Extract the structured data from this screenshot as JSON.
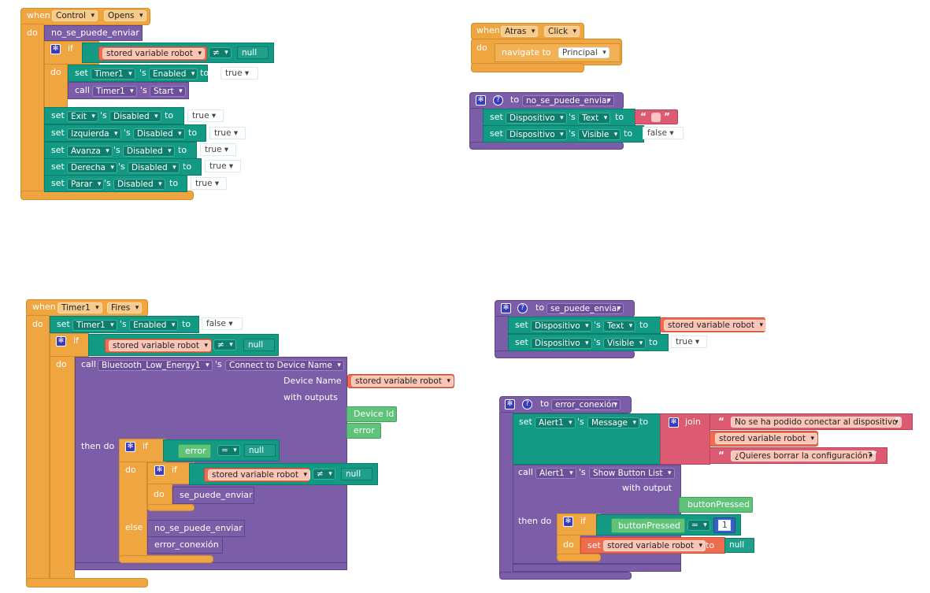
{
  "kw": {
    "when": "when",
    "do": "do",
    "if": "if",
    "set": "set",
    "call": "call",
    "s": "'s",
    "to": "to",
    "then_do": "then do",
    "else": "else",
    "join": "join",
    "navigate_to": "navigate to",
    "with_outputs": "with outputs",
    "with_output": "with output",
    "device_name": "Device Name"
  },
  "ops": {
    "neq": "≠",
    "eq": "="
  },
  "quote_open": "“",
  "quote_close": "”",
  "b1": {
    "component": "Control",
    "event": "Opens",
    "proc": "no_se_puede_enviar",
    "stored": "stored variable robot",
    "null": "null",
    "timer": "Timer1",
    "enabled": "Enabled",
    "true": "true",
    "start": "Start",
    "sets": [
      {
        "comp": "Exit",
        "prop": "Disabled",
        "val": "true"
      },
      {
        "comp": "Izquierda",
        "prop": "Disabled",
        "val": "true"
      },
      {
        "comp": "Avanza",
        "prop": "Disabled",
        "val": "true"
      },
      {
        "comp": "Derecha",
        "prop": "Disabled",
        "val": "true"
      },
      {
        "comp": "Parar",
        "prop": "Disabled",
        "val": "true"
      }
    ]
  },
  "b2": {
    "component": "Atras",
    "event": "Click",
    "screen": "Principal"
  },
  "b3": {
    "proc": "no_se_puede_enviar",
    "comp": "Dispositivo",
    "text": "Text",
    "visible": "Visible",
    "false": "false"
  },
  "b4": {
    "component": "Timer1",
    "event": "Fires",
    "enabled": "Enabled",
    "false": "false",
    "stored": "stored variable robot",
    "null": "null",
    "ble": "Bluetooth_Low_Energy1",
    "method": "Connect to Device Name",
    "device_id": "Device Id",
    "error": "error",
    "se_puede": "se_puede_enviar",
    "no_se_puede": "no_se_puede_enviar",
    "error_conexion": "error_conexión"
  },
  "b5": {
    "proc": "se_puede_enviar",
    "comp": "Dispositivo",
    "text": "Text",
    "visible": "Visible",
    "stored": "stored variable robot",
    "true": "true"
  },
  "b6": {
    "proc": "error_conexión",
    "alert": "Alert1",
    "message": "Message",
    "str1": "No se ha podido conectar al dispositivo",
    "stored": "stored variable robot",
    "str2": "¿Quieres borrar la configuración?",
    "method": "Show Button List",
    "button_pressed": "buttonPressed",
    "one": "1",
    "null": "null"
  }
}
